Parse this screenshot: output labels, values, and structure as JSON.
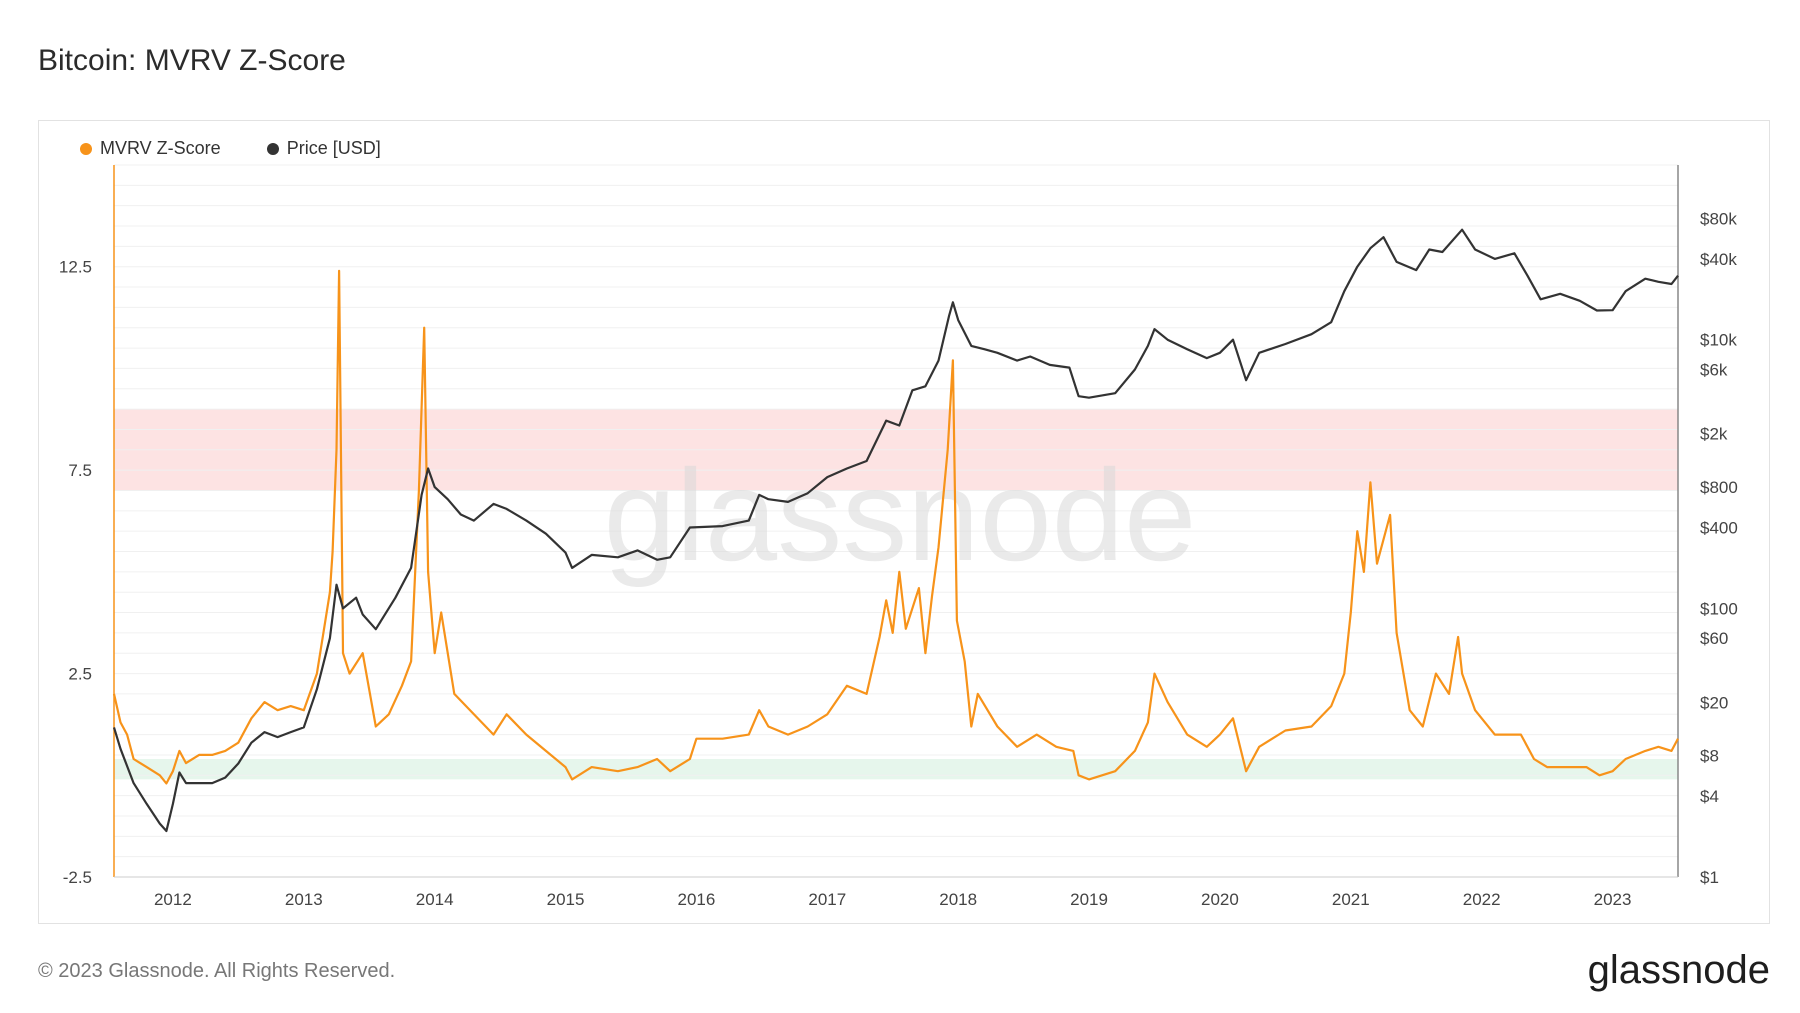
{
  "header": {
    "title": "Bitcoin: MVRV Z-Score"
  },
  "legend": {
    "items": [
      {
        "label": "MVRV Z-Score",
        "color": "#f7931a"
      },
      {
        "label": "Price [USD]",
        "color": "#333333"
      }
    ]
  },
  "watermark": "glassnode",
  "footer": {
    "copyright": "© 2023 Glassnode. All Rights Reserved.",
    "logo": "glassnode"
  },
  "chart_data": {
    "type": "line",
    "xlim": [
      2011.55,
      2023.5
    ],
    "x_ticks": [
      2012,
      2013,
      2014,
      2015,
      2016,
      2017,
      2018,
      2019,
      2020,
      2021,
      2022,
      2023
    ],
    "x_tick_labels": [
      "2012",
      "2013",
      "2014",
      "2015",
      "2016",
      "2017",
      "2018",
      "2019",
      "2020",
      "2021",
      "2022",
      "2023"
    ],
    "y_left": {
      "lim": [
        -2.5,
        15
      ],
      "ticks": [
        -2.5,
        2.5,
        7.5,
        12.5
      ],
      "tick_labels": [
        "-2.5",
        "2.5",
        "7.5",
        "12.5"
      ]
    },
    "y_right": {
      "scale": "log",
      "lim": [
        1,
        200000
      ],
      "ticks": [
        1,
        4,
        8,
        20,
        60,
        100,
        400,
        800,
        2000,
        6000,
        10000,
        40000,
        80000
      ],
      "tick_labels": [
        "$1",
        "$4",
        "$8",
        "$20",
        "$60",
        "$100",
        "$400",
        "$800",
        "$2k",
        "$6k",
        "$10k",
        "$40k",
        "$80k"
      ]
    },
    "bands": [
      {
        "name": "red-zone",
        "from": 7,
        "to": 9,
        "color": "#fde3e3"
      },
      {
        "name": "green-zone",
        "from": -0.1,
        "to": 0.4,
        "color": "#e6f6ec"
      }
    ],
    "series": [
      {
        "name": "MVRV Z-Score",
        "axis": "left",
        "color": "#f7931a",
        "points": [
          [
            2011.55,
            2.0
          ],
          [
            2011.6,
            1.3
          ],
          [
            2011.65,
            1.0
          ],
          [
            2011.7,
            0.4
          ],
          [
            2011.8,
            0.2
          ],
          [
            2011.9,
            0.0
          ],
          [
            2011.95,
            -0.2
          ],
          [
            2012.0,
            0.1
          ],
          [
            2012.05,
            0.6
          ],
          [
            2012.1,
            0.3
          ],
          [
            2012.2,
            0.5
          ],
          [
            2012.3,
            0.5
          ],
          [
            2012.4,
            0.6
          ],
          [
            2012.5,
            0.8
          ],
          [
            2012.6,
            1.4
          ],
          [
            2012.7,
            1.8
          ],
          [
            2012.8,
            1.6
          ],
          [
            2012.9,
            1.7
          ],
          [
            2013.0,
            1.6
          ],
          [
            2013.1,
            2.5
          ],
          [
            2013.2,
            4.5
          ],
          [
            2013.22,
            5.5
          ],
          [
            2013.25,
            8.0
          ],
          [
            2013.27,
            12.4
          ],
          [
            2013.3,
            3.0
          ],
          [
            2013.35,
            2.5
          ],
          [
            2013.45,
            3.0
          ],
          [
            2013.55,
            1.2
          ],
          [
            2013.65,
            1.5
          ],
          [
            2013.75,
            2.2
          ],
          [
            2013.82,
            2.8
          ],
          [
            2013.88,
            7.0
          ],
          [
            2013.92,
            11.0
          ],
          [
            2013.95,
            5.0
          ],
          [
            2014.0,
            3.0
          ],
          [
            2014.05,
            4.0
          ],
          [
            2014.15,
            2.0
          ],
          [
            2014.3,
            1.5
          ],
          [
            2014.45,
            1.0
          ],
          [
            2014.55,
            1.5
          ],
          [
            2014.7,
            1.0
          ],
          [
            2014.85,
            0.6
          ],
          [
            2015.0,
            0.2
          ],
          [
            2015.05,
            -0.1
          ],
          [
            2015.2,
            0.2
          ],
          [
            2015.4,
            0.1
          ],
          [
            2015.55,
            0.2
          ],
          [
            2015.7,
            0.4
          ],
          [
            2015.8,
            0.1
          ],
          [
            2015.95,
            0.4
          ],
          [
            2016.0,
            0.9
          ],
          [
            2016.2,
            0.9
          ],
          [
            2016.4,
            1.0
          ],
          [
            2016.48,
            1.6
          ],
          [
            2016.55,
            1.2
          ],
          [
            2016.7,
            1.0
          ],
          [
            2016.85,
            1.2
          ],
          [
            2017.0,
            1.5
          ],
          [
            2017.15,
            2.2
          ],
          [
            2017.3,
            2.0
          ],
          [
            2017.4,
            3.4
          ],
          [
            2017.45,
            4.3
          ],
          [
            2017.5,
            3.5
          ],
          [
            2017.55,
            5.0
          ],
          [
            2017.6,
            3.6
          ],
          [
            2017.7,
            4.6
          ],
          [
            2017.75,
            3.0
          ],
          [
            2017.8,
            4.4
          ],
          [
            2017.85,
            5.6
          ],
          [
            2017.92,
            8.0
          ],
          [
            2017.96,
            10.2
          ],
          [
            2017.99,
            3.8
          ],
          [
            2018.05,
            2.8
          ],
          [
            2018.1,
            1.2
          ],
          [
            2018.15,
            2.0
          ],
          [
            2018.3,
            1.2
          ],
          [
            2018.45,
            0.7
          ],
          [
            2018.6,
            1.0
          ],
          [
            2018.75,
            0.7
          ],
          [
            2018.88,
            0.6
          ],
          [
            2018.92,
            0.0
          ],
          [
            2019.0,
            -0.1
          ],
          [
            2019.2,
            0.1
          ],
          [
            2019.35,
            0.6
          ],
          [
            2019.45,
            1.3
          ],
          [
            2019.5,
            2.5
          ],
          [
            2019.6,
            1.8
          ],
          [
            2019.75,
            1.0
          ],
          [
            2019.9,
            0.7
          ],
          [
            2020.0,
            1.0
          ],
          [
            2020.1,
            1.4
          ],
          [
            2020.2,
            0.1
          ],
          [
            2020.3,
            0.7
          ],
          [
            2020.5,
            1.1
          ],
          [
            2020.7,
            1.2
          ],
          [
            2020.85,
            1.7
          ],
          [
            2020.95,
            2.5
          ],
          [
            2021.0,
            4.0
          ],
          [
            2021.05,
            6.0
          ],
          [
            2021.1,
            5.0
          ],
          [
            2021.15,
            7.2
          ],
          [
            2021.2,
            5.2
          ],
          [
            2021.3,
            6.4
          ],
          [
            2021.35,
            3.5
          ],
          [
            2021.45,
            1.6
          ],
          [
            2021.55,
            1.2
          ],
          [
            2021.65,
            2.5
          ],
          [
            2021.75,
            2.0
          ],
          [
            2021.82,
            3.4
          ],
          [
            2021.85,
            2.5
          ],
          [
            2021.95,
            1.6
          ],
          [
            2022.1,
            1.0
          ],
          [
            2022.3,
            1.0
          ],
          [
            2022.4,
            0.4
          ],
          [
            2022.5,
            0.2
          ],
          [
            2022.65,
            0.2
          ],
          [
            2022.8,
            0.2
          ],
          [
            2022.9,
            0.0
          ],
          [
            2023.0,
            0.1
          ],
          [
            2023.1,
            0.4
          ],
          [
            2023.25,
            0.6
          ],
          [
            2023.35,
            0.7
          ],
          [
            2023.45,
            0.6
          ],
          [
            2023.5,
            0.9
          ]
        ]
      },
      {
        "name": "Price [USD]",
        "axis": "right",
        "color": "#333333",
        "points": [
          [
            2011.55,
            13
          ],
          [
            2011.6,
            9
          ],
          [
            2011.7,
            5
          ],
          [
            2011.8,
            3.5
          ],
          [
            2011.9,
            2.5
          ],
          [
            2011.95,
            2.2
          ],
          [
            2012.0,
            3.5
          ],
          [
            2012.05,
            6
          ],
          [
            2012.1,
            5
          ],
          [
            2012.2,
            5
          ],
          [
            2012.3,
            5
          ],
          [
            2012.4,
            5.5
          ],
          [
            2012.5,
            7
          ],
          [
            2012.6,
            10
          ],
          [
            2012.7,
            12
          ],
          [
            2012.8,
            11
          ],
          [
            2012.9,
            12
          ],
          [
            2013.0,
            13
          ],
          [
            2013.1,
            25
          ],
          [
            2013.2,
            60
          ],
          [
            2013.25,
            150
          ],
          [
            2013.3,
            100
          ],
          [
            2013.4,
            120
          ],
          [
            2013.45,
            90
          ],
          [
            2013.55,
            70
          ],
          [
            2013.7,
            120
          ],
          [
            2013.82,
            200
          ],
          [
            2013.9,
            700
          ],
          [
            2013.95,
            1100
          ],
          [
            2014.0,
            800
          ],
          [
            2014.1,
            650
          ],
          [
            2014.2,
            500
          ],
          [
            2014.3,
            450
          ],
          [
            2014.45,
            600
          ],
          [
            2014.55,
            550
          ],
          [
            2014.7,
            450
          ],
          [
            2014.85,
            360
          ],
          [
            2015.0,
            260
          ],
          [
            2015.05,
            200
          ],
          [
            2015.2,
            250
          ],
          [
            2015.4,
            240
          ],
          [
            2015.55,
            270
          ],
          [
            2015.7,
            230
          ],
          [
            2015.8,
            240
          ],
          [
            2015.95,
            400
          ],
          [
            2016.2,
            410
          ],
          [
            2016.4,
            450
          ],
          [
            2016.48,
            700
          ],
          [
            2016.55,
            650
          ],
          [
            2016.7,
            620
          ],
          [
            2016.85,
            720
          ],
          [
            2017.0,
            950
          ],
          [
            2017.15,
            1100
          ],
          [
            2017.3,
            1250
          ],
          [
            2017.45,
            2500
          ],
          [
            2017.55,
            2300
          ],
          [
            2017.65,
            4200
          ],
          [
            2017.75,
            4500
          ],
          [
            2017.85,
            7000
          ],
          [
            2017.93,
            15000
          ],
          [
            2017.96,
            19000
          ],
          [
            2018.0,
            14000
          ],
          [
            2018.1,
            9000
          ],
          [
            2018.2,
            8500
          ],
          [
            2018.3,
            8000
          ],
          [
            2018.45,
            7000
          ],
          [
            2018.55,
            7500
          ],
          [
            2018.7,
            6500
          ],
          [
            2018.85,
            6200
          ],
          [
            2018.92,
            3800
          ],
          [
            2019.0,
            3700
          ],
          [
            2019.2,
            4000
          ],
          [
            2019.35,
            6000
          ],
          [
            2019.45,
            9000
          ],
          [
            2019.5,
            12000
          ],
          [
            2019.6,
            10000
          ],
          [
            2019.75,
            8500
          ],
          [
            2019.9,
            7300
          ],
          [
            2020.0,
            8000
          ],
          [
            2020.1,
            10000
          ],
          [
            2020.2,
            5000
          ],
          [
            2020.3,
            8000
          ],
          [
            2020.5,
            9300
          ],
          [
            2020.7,
            11000
          ],
          [
            2020.85,
            13500
          ],
          [
            2020.95,
            23000
          ],
          [
            2021.05,
            35000
          ],
          [
            2021.15,
            48000
          ],
          [
            2021.25,
            58000
          ],
          [
            2021.35,
            38000
          ],
          [
            2021.5,
            33000
          ],
          [
            2021.6,
            47000
          ],
          [
            2021.7,
            45000
          ],
          [
            2021.85,
            66000
          ],
          [
            2021.95,
            47000
          ],
          [
            2022.1,
            40000
          ],
          [
            2022.25,
            44000
          ],
          [
            2022.35,
            30000
          ],
          [
            2022.45,
            20000
          ],
          [
            2022.6,
            22000
          ],
          [
            2022.75,
            19500
          ],
          [
            2022.88,
            16500
          ],
          [
            2023.0,
            16600
          ],
          [
            2023.1,
            23000
          ],
          [
            2023.25,
            28500
          ],
          [
            2023.35,
            27000
          ],
          [
            2023.45,
            26000
          ],
          [
            2023.5,
            30000
          ]
        ]
      }
    ]
  }
}
